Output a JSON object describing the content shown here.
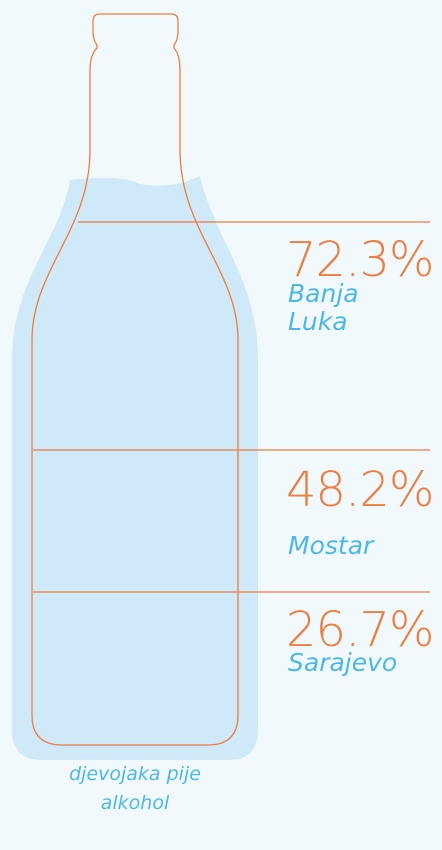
{
  "items": [
    {
      "value": "72.3%",
      "city": "Banja Luka"
    },
    {
      "value": "48.2%",
      "city": "Mostar"
    },
    {
      "value": "26.7%",
      "city": "Sarajevo"
    }
  ],
  "caption": "djevojaka pije alkohol"
}
